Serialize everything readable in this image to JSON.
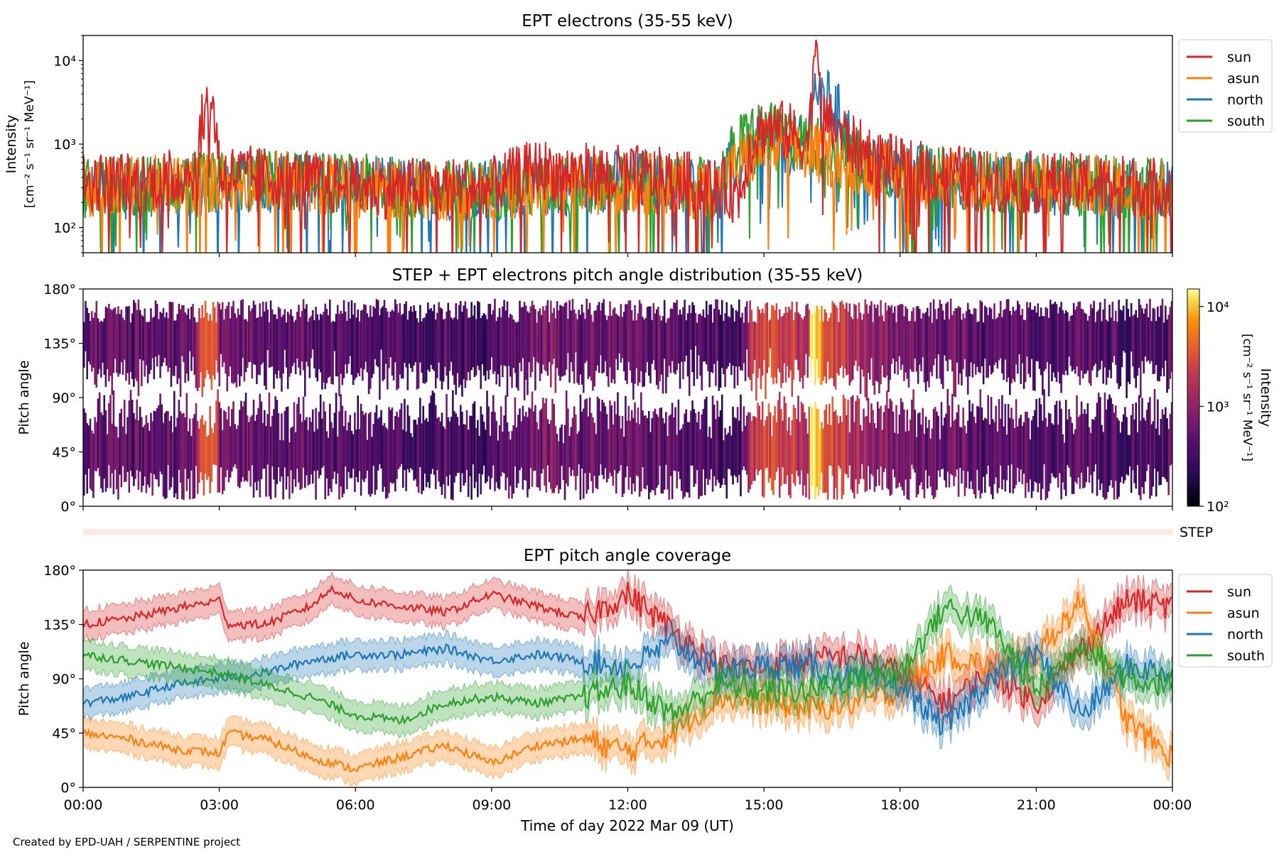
{
  "figure": {
    "credit": "Created by EPD-UAH / SERPENTINE project",
    "xlabel": "Time of day 2022 Mar 09 (UT)",
    "xticks": [
      "00:00",
      "03:00",
      "06:00",
      "09:00",
      "12:00",
      "15:00",
      "18:00",
      "21:00",
      "00:00"
    ]
  },
  "colors": {
    "sun": "#d62728",
    "asun": "#ff7f0e",
    "north": "#1f77b4",
    "south": "#2ca02c"
  },
  "chart_data": [
    {
      "type": "line",
      "title": "EPT electrons (35-55 keV)",
      "ylabel": [
        "Intensity",
        "[cm⁻² s⁻¹ sr⁻¹ MeV⁻¹]"
      ],
      "yscale": "log",
      "ylim": [
        50,
        20000
      ],
      "yticks": [
        100,
        1000,
        10000
      ],
      "ytick_labels": [
        "10²",
        "10³",
        "10⁴"
      ],
      "xlim_hours": [
        0,
        24
      ],
      "legend": {
        "placement": "outside-right",
        "entries": [
          "sun",
          "asun",
          "north",
          "south"
        ]
      },
      "series": [
        {
          "name": "sun",
          "x": [
            0,
            1,
            2,
            2.5,
            2.8,
            3,
            4,
            5,
            6,
            7,
            8,
            9,
            10,
            11,
            12,
            13,
            14,
            14.5,
            14.8,
            15,
            15.5,
            16,
            16.05,
            16.3,
            17,
            18,
            19,
            20,
            21,
            22,
            23,
            24
          ],
          "values": [
            350,
            350,
            380,
            500,
            3500,
            450,
            400,
            350,
            300,
            300,
            300,
            300,
            500,
            450,
            420,
            380,
            300,
            250,
            1200,
            1600,
            1400,
            1000,
            13000,
            2000,
            900,
            500,
            450,
            350,
            350,
            330,
            320,
            300
          ]
        },
        {
          "name": "asun",
          "x": [
            0,
            2,
            4,
            6,
            8,
            10,
            12,
            14,
            15,
            16,
            17,
            18,
            20,
            22,
            24
          ],
          "values": [
            300,
            320,
            380,
            300,
            280,
            300,
            350,
            280,
            900,
            800,
            600,
            400,
            350,
            320,
            300
          ]
        },
        {
          "name": "north",
          "x": [
            0,
            2,
            4,
            6,
            8,
            10,
            12,
            14,
            15,
            16,
            16.05,
            17,
            18,
            20,
            22,
            24
          ],
          "values": [
            280,
            300,
            350,
            320,
            280,
            300,
            380,
            300,
            1000,
            900,
            5000,
            700,
            450,
            350,
            320,
            280
          ]
        },
        {
          "name": "south",
          "x": [
            0,
            2,
            4,
            6,
            8,
            10,
            12,
            14,
            14.8,
            15,
            16,
            17,
            18,
            20,
            22,
            24
          ],
          "values": [
            300,
            320,
            380,
            330,
            280,
            300,
            350,
            280,
            1500,
            1400,
            1000,
            700,
            450,
            350,
            320,
            300
          ]
        }
      ]
    },
    {
      "type": "heatmap",
      "title": "STEP + EPT electrons pitch angle distribution (35-55 keV)",
      "ylabel": "Pitch angle",
      "ylim": [
        0,
        180
      ],
      "yticks": [
        "0°",
        "45°",
        "90°",
        "135°",
        "180°"
      ],
      "colorbar": {
        "label": [
          "Intensity",
          "[cm⁻² s⁻¹ sr⁻¹ MeV⁻¹]"
        ],
        "scale": "log",
        "range": [
          100,
          15000
        ],
        "tick_labels": [
          "10²",
          "10³",
          "10⁴"
        ],
        "colormap": "inferno"
      },
      "step_label": "STEP"
    },
    {
      "type": "line",
      "title": "EPT pitch angle coverage",
      "ylabel": "Pitch angle",
      "ylim": [
        0,
        180
      ],
      "yticks": [
        "0°",
        "45°",
        "90°",
        "135°",
        "180°"
      ],
      "legend": {
        "placement": "outside-right",
        "entries": [
          "sun",
          "asun",
          "north",
          "south"
        ]
      },
      "series": [
        {
          "name": "sun",
          "x": [
            0,
            1,
            2,
            3,
            3.2,
            4,
            5,
            5.5,
            6,
            7,
            8,
            9,
            10,
            11,
            12,
            13,
            14,
            15,
            16,
            17,
            18,
            19,
            20,
            21,
            22,
            23,
            24
          ],
          "values": [
            135,
            140,
            148,
            155,
            135,
            135,
            150,
            165,
            155,
            150,
            145,
            160,
            150,
            140,
            160,
            130,
            100,
            100,
            105,
            110,
            95,
            70,
            95,
            70,
            115,
            155,
            150
          ]
        },
        {
          "name": "asun",
          "x": [
            0,
            1,
            2,
            3,
            3.2,
            4,
            5,
            6,
            7,
            8,
            9,
            10,
            11,
            12,
            13,
            14,
            15,
            16,
            17,
            18,
            19,
            20,
            21,
            22,
            23,
            24
          ],
          "values": [
            45,
            40,
            32,
            28,
            45,
            40,
            25,
            15,
            25,
            35,
            20,
            35,
            40,
            30,
            45,
            75,
            70,
            65,
            70,
            80,
            110,
            100,
            110,
            155,
            55,
            25
          ]
        },
        {
          "name": "north",
          "x": [
            0,
            1,
            2,
            3,
            4,
            5,
            6,
            7,
            8,
            9,
            10,
            11,
            12,
            13,
            14,
            15,
            16,
            17,
            18,
            19,
            20,
            21,
            22,
            23,
            24
          ],
          "values": [
            70,
            75,
            85,
            90,
            95,
            105,
            110,
            110,
            115,
            105,
            110,
            105,
            100,
            120,
            95,
            100,
            100,
            90,
            85,
            50,
            90,
            110,
            60,
            100,
            95
          ]
        },
        {
          "name": "south",
          "x": [
            0,
            1,
            2,
            3,
            4,
            5,
            6,
            7,
            8,
            9,
            10,
            11,
            12,
            13,
            14,
            15,
            16,
            17,
            18,
            19,
            20,
            21,
            22,
            23,
            24
          ],
          "values": [
            110,
            105,
            100,
            95,
            85,
            75,
            60,
            55,
            70,
            75,
            70,
            75,
            85,
            60,
            85,
            80,
            80,
            90,
            95,
            150,
            135,
            80,
            120,
            90,
            85
          ]
        }
      ]
    }
  ]
}
